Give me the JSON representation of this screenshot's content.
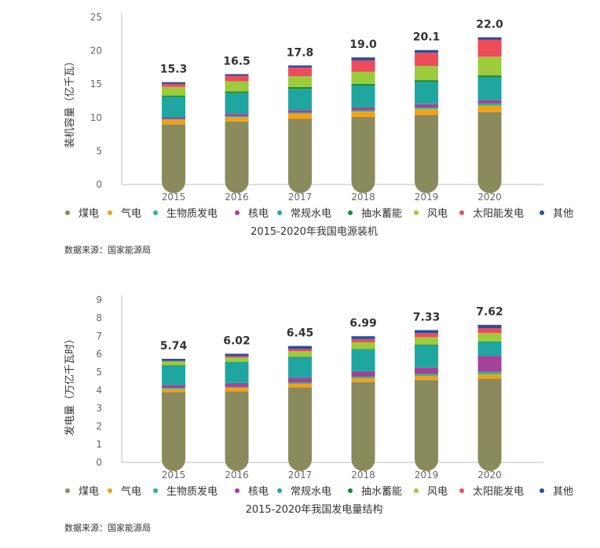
{
  "legend": [
    {
      "name": "煤电",
      "color": "#8a8a5c"
    },
    {
      "name": "气电",
      "color": "#f0a21a"
    },
    {
      "name": "生物质发电",
      "color": "#2bb58f"
    },
    {
      "name": "核电",
      "color": "#a6419a"
    },
    {
      "name": "常规水电",
      "color": "#1fa6a0"
    },
    {
      "name": "抽水蓄能",
      "color": "#1a8a3a"
    },
    {
      "name": "风电",
      "color": "#9ccc3c"
    },
    {
      "name": "太阳能发电",
      "color": "#ee4b5b"
    },
    {
      "name": "其他",
      "color": "#2d5096"
    }
  ],
  "chart_data": [
    {
      "type": "bar",
      "stacked": true,
      "title": "2015-2020年我国电源装机",
      "ylabel": "装机容量（亿千瓦）",
      "source": "数据来源：国家能源局",
      "categories": [
        "2015",
        "2016",
        "2017",
        "2018",
        "2019",
        "2020"
      ],
      "ylim": [
        0,
        25
      ],
      "yticks": [
        0,
        5,
        10,
        15,
        20,
        25
      ],
      "totals": [
        "15.3",
        "16.5",
        "17.8",
        "19.0",
        "20.1",
        "22.0"
      ],
      "series": [
        {
          "name": "煤电",
          "values": [
            9.0,
            9.4,
            9.8,
            10.1,
            10.4,
            10.8
          ]
        },
        {
          "name": "气电",
          "values": [
            0.7,
            0.7,
            0.8,
            0.8,
            0.9,
            1.0
          ]
        },
        {
          "name": "生物质发电",
          "values": [
            0.1,
            0.1,
            0.15,
            0.2,
            0.2,
            0.3
          ]
        },
        {
          "name": "核电",
          "values": [
            0.3,
            0.35,
            0.35,
            0.45,
            0.5,
            0.5
          ]
        },
        {
          "name": "常规水电",
          "values": [
            3.0,
            3.1,
            3.2,
            3.2,
            3.3,
            3.4
          ]
        },
        {
          "name": "抽水蓄能",
          "values": [
            0.2,
            0.27,
            0.28,
            0.3,
            0.3,
            0.31
          ]
        },
        {
          "name": "风电",
          "values": [
            1.3,
            1.5,
            1.6,
            1.8,
            2.1,
            2.8
          ]
        },
        {
          "name": "太阳能发电",
          "values": [
            0.4,
            0.8,
            1.3,
            1.7,
            2.0,
            2.5
          ]
        },
        {
          "name": "其他",
          "values": [
            0.3,
            0.28,
            0.32,
            0.45,
            0.4,
            0.4
          ]
        }
      ]
    },
    {
      "type": "bar",
      "stacked": true,
      "title": "2015-2020年我国发电量结构",
      "ylabel": "发电量（万亿千瓦时）",
      "source": "数据来源：国家能源局",
      "categories": [
        "2015",
        "2016",
        "2017",
        "2018",
        "2019",
        "2020"
      ],
      "ylim": [
        0,
        9
      ],
      "yticks": [
        0,
        1,
        2,
        3,
        4,
        5,
        6,
        7,
        8,
        9
      ],
      "totals": [
        "5.74",
        "6.02",
        "6.45",
        "6.99",
        "7.33",
        "7.62"
      ],
      "series": [
        {
          "name": "煤电",
          "values": [
            3.9,
            3.94,
            4.15,
            4.45,
            4.56,
            4.63
          ]
        },
        {
          "name": "气电",
          "values": [
            0.17,
            0.19,
            0.2,
            0.22,
            0.23,
            0.25
          ]
        },
        {
          "name": "生物质发电",
          "values": [
            0.05,
            0.06,
            0.08,
            0.09,
            0.11,
            0.13
          ]
        },
        {
          "name": "核电",
          "values": [
            0.17,
            0.21,
            0.25,
            0.29,
            0.35,
            0.88
          ]
        },
        {
          "name": "常规水电",
          "values": [
            1.07,
            1.14,
            1.15,
            1.2,
            1.25,
            0.78
          ]
        },
        {
          "name": "抽水蓄能",
          "values": [
            0.03,
            0.03,
            0.03,
            0.03,
            0.03,
            0.03
          ]
        },
        {
          "name": "风电",
          "values": [
            0.19,
            0.24,
            0.3,
            0.37,
            0.41,
            0.47
          ]
        },
        {
          "name": "太阳能发电",
          "values": [
            0.04,
            0.07,
            0.12,
            0.18,
            0.22,
            0.26
          ]
        },
        {
          "name": "其他",
          "values": [
            0.12,
            0.14,
            0.17,
            0.16,
            0.17,
            0.19
          ]
        }
      ]
    }
  ]
}
